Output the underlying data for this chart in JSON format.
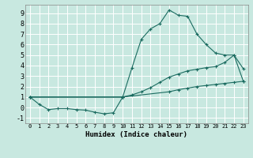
{
  "title": "",
  "xlabel": "Humidex (Indice chaleur)",
  "xlim": [
    -0.5,
    23.5
  ],
  "ylim": [
    -1.5,
    9.8
  ],
  "xticks": [
    0,
    1,
    2,
    3,
    4,
    5,
    6,
    7,
    8,
    9,
    10,
    11,
    12,
    13,
    14,
    15,
    16,
    17,
    18,
    19,
    20,
    21,
    22,
    23
  ],
  "yticks": [
    -1,
    0,
    1,
    2,
    3,
    4,
    5,
    6,
    7,
    8,
    9
  ],
  "bg_color": "#c8e8e0",
  "grid_color": "#ffffff",
  "line_color": "#1a6b60",
  "line1_x": [
    0,
    1,
    2,
    3,
    4,
    5,
    6,
    7,
    8,
    9,
    10
  ],
  "line1_y": [
    1.0,
    0.3,
    -0.2,
    -0.1,
    -0.1,
    -0.2,
    -0.25,
    -0.45,
    -0.6,
    -0.5,
    1.0
  ],
  "line2_x": [
    0,
    10,
    15,
    16,
    17,
    18,
    19,
    20,
    21,
    22,
    23
  ],
  "line2_y": [
    1.0,
    1.0,
    1.5,
    1.7,
    1.85,
    2.0,
    2.1,
    2.2,
    2.3,
    2.4,
    2.5
  ],
  "line3_x": [
    0,
    10,
    11,
    12,
    13,
    14,
    15,
    16,
    17,
    18,
    19,
    20,
    21,
    22,
    23
  ],
  "line3_y": [
    1.0,
    1.0,
    1.2,
    1.5,
    1.9,
    2.4,
    2.9,
    3.2,
    3.5,
    3.65,
    3.8,
    3.9,
    4.3,
    5.0,
    3.7
  ],
  "line4_x": [
    0,
    10,
    11,
    12,
    13,
    14,
    15,
    16,
    17,
    18,
    19,
    20,
    21,
    22,
    23
  ],
  "line4_y": [
    1.0,
    1.0,
    3.8,
    6.5,
    7.5,
    8.0,
    9.3,
    8.8,
    8.7,
    7.0,
    6.0,
    5.2,
    5.0,
    5.0,
    2.5
  ]
}
